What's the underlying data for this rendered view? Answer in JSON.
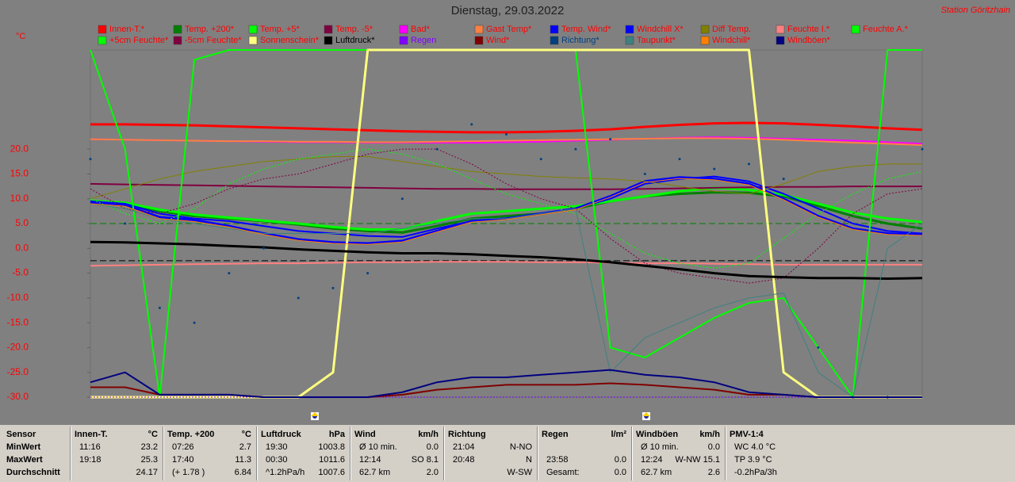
{
  "chart_data": {
    "type": "line",
    "title": "Dienstag, 29.03.2022",
    "station": "Station Göritzhain",
    "y_label": "°C",
    "legend_text_color": "#ff0000",
    "tick_label_color": "#ff0000",
    "x": [
      0,
      1,
      2,
      3,
      4,
      5,
      6,
      7,
      8,
      9,
      10,
      11,
      12,
      13,
      14,
      15,
      16,
      17,
      18,
      19,
      20,
      21,
      22,
      23,
      24
    ],
    "xlim": [
      0,
      24
    ],
    "ylim": [
      -30,
      40
    ],
    "yticks": [
      {
        "value": -30,
        "label": "-30.0"
      },
      {
        "value": -25,
        "label": "-25.0"
      },
      {
        "value": -20,
        "label": "-20.0"
      },
      {
        "value": -15,
        "label": "-15.0"
      },
      {
        "value": -10,
        "label": "-10.0"
      },
      {
        "value": -5,
        "label": "-5.0"
      },
      {
        "value": 0,
        "label": "0.0"
      },
      {
        "value": 5,
        "label": "5.0"
      },
      {
        "value": 10,
        "label": "10.0"
      },
      {
        "value": 15,
        "label": "15.0"
      },
      {
        "value": 20,
        "label": "20.0"
      }
    ],
    "reference_lines": [
      {
        "value": 5,
        "color": "#008000"
      },
      {
        "value": -2.5,
        "color": "#000000"
      }
    ],
    "series": [
      {
        "name": "Innen-T.*",
        "color": "#ff0000",
        "width": 3,
        "values": [
          25.0,
          25.0,
          24.9,
          24.8,
          24.6,
          24.4,
          24.2,
          24.0,
          23.8,
          23.6,
          23.5,
          23.4,
          23.4,
          23.5,
          23.7,
          24.0,
          24.5,
          24.9,
          25.2,
          25.3,
          25.2,
          24.9,
          24.6,
          24.2,
          23.9
        ]
      },
      {
        "name": "Temp. +200*",
        "color": "#008000",
        "width": 3,
        "values": [
          9.3,
          9.0,
          7.5,
          6.5,
          6.0,
          5.5,
          4.8,
          4.0,
          3.5,
          3.2,
          4.5,
          6.0,
          6.5,
          7.0,
          8.0,
          9.5,
          10.5,
          11.0,
          11.3,
          11.2,
          10.5,
          8.5,
          6.5,
          5.0,
          4.0
        ]
      },
      {
        "name": "Temp. +5*",
        "color": "#00ff00",
        "width": 3,
        "values": [
          9.6,
          9.2,
          7.8,
          6.8,
          6.2,
          5.6,
          5.0,
          4.3,
          3.8,
          3.8,
          5.5,
          7.0,
          7.5,
          8.0,
          8.5,
          9.5,
          10.5,
          11.5,
          12.2,
          11.8,
          10.8,
          9.0,
          7.2,
          6.0,
          5.3
        ]
      },
      {
        "name": "Temp. -5*",
        "color": "#800040",
        "width": 2,
        "values": [
          13.0,
          12.9,
          12.8,
          12.7,
          12.6,
          12.5,
          12.4,
          12.3,
          12.2,
          12.1,
          12.0,
          12.0,
          11.9,
          11.9,
          11.9,
          11.9,
          12.0,
          12.1,
          12.2,
          12.3,
          12.4,
          12.4,
          12.5,
          12.5,
          12.5
        ]
      },
      {
        "name": "Bad*",
        "color": "#ff00ff",
        "width": 2,
        "values": [
          22.0,
          21.9,
          21.8,
          21.7,
          21.6,
          21.5,
          21.4,
          21.4,
          21.3,
          21.3,
          21.3,
          21.3,
          21.4,
          21.5,
          21.7,
          21.9,
          22.1,
          22.3,
          22.4,
          22.3,
          22.1,
          21.9,
          21.7,
          21.4,
          21.1
        ]
      },
      {
        "name": "Gast Temp*",
        "color": "#ff8040",
        "width": 2,
        "values": [
          22.0,
          21.9,
          21.8,
          21.7,
          21.6,
          21.6,
          21.5,
          21.5,
          21.4,
          21.4,
          21.5,
          21.6,
          21.7,
          21.8,
          21.9,
          22.0,
          22.1,
          22.2,
          22.2,
          22.1,
          21.9,
          21.6,
          21.3,
          21.1,
          20.8
        ]
      },
      {
        "name": "Temp. Wind*",
        "color": "#0000ff",
        "width": 2,
        "values": [
          9.5,
          9.0,
          7.0,
          6.0,
          5.5,
          4.5,
          3.5,
          3.0,
          2.5,
          2.3,
          4.0,
          5.5,
          6.0,
          7.0,
          8.0,
          10.0,
          13.0,
          14.0,
          14.5,
          13.5,
          11.0,
          8.0,
          5.0,
          3.5,
          3.0
        ]
      },
      {
        "name": "Windchill X*",
        "color": "#0000ff",
        "width": 3,
        "values": [
          9.2,
          8.7,
          6.3,
          5.7,
          4.5,
          3.0,
          1.8,
          1.2,
          1.0,
          1.5,
          3.5,
          5.5,
          6.0,
          7.0,
          8.0,
          10.5,
          13.5,
          14.3,
          14.0,
          13.0,
          10.0,
          6.5,
          4.0,
          3.0,
          2.8
        ]
      },
      {
        "name": "Diff Temp.",
        "color": "#808000",
        "width": 1,
        "values": [
          10.0,
          12.0,
          14.0,
          15.5,
          16.5,
          17.5,
          18.0,
          18.5,
          18.5,
          17.5,
          16.5,
          15.5,
          15.0,
          14.5,
          14.2,
          14.0,
          13.5,
          12.5,
          11.5,
          11.0,
          13.0,
          15.5,
          16.5,
          17.0,
          17.0
        ]
      },
      {
        "name": "Feuchte I.*",
        "color": "#ff8080",
        "width": 2,
        "values": [
          -3.5,
          -3.4,
          -3.3,
          -3.2,
          -3.1,
          -3.0,
          -3.0,
          -2.9,
          -2.8,
          -2.8,
          -2.7,
          -2.7,
          -2.7,
          -2.8,
          -2.8,
          -2.9,
          -3.0,
          -3.0,
          -3.1,
          -3.2,
          -3.3,
          -3.3,
          -3.3,
          -3.3,
          -3.3
        ]
      },
      {
        "name": "Feuchte A.*",
        "color": "#00ff00",
        "width": 2,
        "values": [
          40,
          20,
          -30,
          38,
          40,
          40,
          40,
          40,
          40,
          40,
          40,
          40,
          40,
          40,
          40,
          -20,
          -22,
          -18,
          -14,
          -11,
          -10,
          -20,
          -30,
          40,
          40
        ]
      },
      {
        "name": "+5cm Feuchte*",
        "color": "#00ff00",
        "width": 1,
        "style": "dotted",
        "values": [
          10,
          7,
          5,
          8,
          13,
          16,
          18,
          19,
          20,
          19,
          17,
          14,
          11,
          9,
          7,
          3,
          -1,
          -3,
          -4,
          -3,
          2,
          7,
          11,
          14,
          15.5
        ]
      },
      {
        "name": "-5cm Feuchte*",
        "color": "#800040",
        "width": 1,
        "style": "dotted",
        "values": [
          12,
          8,
          7,
          9,
          12,
          14,
          15,
          17,
          19,
          20,
          20,
          17,
          13,
          10,
          8,
          2,
          -3,
          -5,
          -6,
          -7,
          -6,
          0,
          7,
          11,
          12
        ]
      },
      {
        "name": "Sonnenschein*",
        "color": "#ffff80",
        "width": 3,
        "values": [
          -30,
          -30,
          -30,
          -30,
          -30,
          -30,
          -30,
          -25,
          40,
          40,
          40,
          40,
          40,
          40,
          40,
          40,
          40,
          40,
          40,
          40,
          -25,
          -30,
          -30,
          -30,
          -30
        ]
      },
      {
        "name": "Luftdruck*",
        "color": "#000000",
        "label_color": "#000000",
        "width": 3,
        "values": [
          1.3,
          1.2,
          1.0,
          0.8,
          0.5,
          0.2,
          -0.2,
          -0.5,
          -0.8,
          -1.0,
          -1.0,
          -1.2,
          -1.5,
          -1.8,
          -2.2,
          -2.8,
          -3.5,
          -4.2,
          -5.0,
          -5.6,
          -5.8,
          -6.0,
          -6.0,
          -6.1,
          -6.0
        ]
      },
      {
        "name": "Regen",
        "color": "#8000ff",
        "label_color": "#8000ff",
        "width": 1,
        "style": "dotted",
        "values": [
          -30,
          -30,
          -30,
          -30,
          -30,
          -30,
          -30,
          -30,
          -30,
          -30,
          -30,
          -30,
          -30,
          -30,
          -30,
          -30,
          -30,
          -30,
          -30,
          -30,
          -30,
          -30,
          -30,
          -30,
          -30
        ]
      },
      {
        "name": "Wind*",
        "color": "#800000",
        "width": 2,
        "values": [
          -28,
          -28,
          -29.5,
          -29.5,
          -29.5,
          -30,
          -30,
          -30,
          -30,
          -29.5,
          -28.5,
          -28,
          -27.5,
          -27.5,
          -27.5,
          -27.2,
          -27.5,
          -28,
          -28.5,
          -29.5,
          -29.5,
          -30,
          -30,
          -30,
          -30
        ]
      },
      {
        "name": "Richtung*",
        "color": "#004080",
        "label_color": "#004080",
        "style": "dots",
        "values": [
          18,
          5,
          -12,
          -15,
          -5,
          0,
          -10,
          -8,
          -5,
          10,
          20,
          25,
          23,
          18,
          20,
          22,
          15,
          18,
          16,
          17,
          14,
          -20,
          -30,
          -30,
          20
        ]
      },
      {
        "name": "Taupunkt*",
        "color": "#408080",
        "width": 1,
        "values": [
          9,
          8,
          6,
          5,
          4,
          3,
          3,
          3,
          3,
          4,
          5,
          6,
          6,
          7,
          8,
          -25,
          -18,
          -15,
          -12,
          -10,
          -9,
          -25,
          -30,
          0,
          5
        ]
      },
      {
        "name": "Windchill*",
        "color": "#ff8000",
        "width": 1,
        "values": [
          9.0,
          8.5,
          6.0,
          5.4,
          4.3,
          2.8,
          1.6,
          1.0,
          0.8,
          1.3,
          3.3,
          5.3,
          5.8,
          6.8,
          7.8,
          10.3,
          13.3,
          14.1,
          13.8,
          12.8,
          9.8,
          6.3,
          3.8,
          2.8,
          2.6
        ]
      },
      {
        "name": "Windböen*",
        "color": "#000080",
        "width": 2,
        "values": [
          -27,
          -25,
          -29.5,
          -29.5,
          -29.5,
          -30,
          -30,
          -30,
          -30,
          -29,
          -27,
          -26,
          -26,
          -25.5,
          -25,
          -24.5,
          -25.5,
          -26,
          -27,
          -29,
          -29.5,
          -30,
          -30,
          -30,
          -30
        ]
      }
    ]
  },
  "table": {
    "header": "Sensor",
    "row_labels": [
      "MinWert",
      "MaxWert",
      "Durchschnitt"
    ],
    "columns": [
      {
        "name": "Innen-T.",
        "unit": "°C",
        "rows": [
          [
            "11:16",
            "23.2"
          ],
          [
            "19:18",
            "25.3"
          ],
          [
            null,
            "24.17"
          ]
        ]
      },
      {
        "name": "Temp. +200",
        "unit": "°C",
        "rows": [
          [
            "07:26",
            "2.7"
          ],
          [
            "17:40",
            "11.3"
          ],
          [
            "(+ 1.78 )",
            "6.84"
          ]
        ]
      },
      {
        "name": "Luftdruck",
        "unit": "hPa",
        "rows": [
          [
            "19:30",
            "1003.8"
          ],
          [
            "00:30",
            "1011.6"
          ],
          [
            "^1.2hPa/h",
            "1007.6"
          ]
        ]
      },
      {
        "name": "Wind",
        "unit": "km/h",
        "rows": [
          [
            "Ø 10 min.",
            "0.0"
          ],
          [
            "12:14",
            "SO 8.1"
          ],
          [
            "62.7 km",
            "2.0"
          ]
        ]
      },
      {
        "name": "Richtung",
        "rows": [
          [
            "21:04",
            "N-NO"
          ],
          [
            "20:48",
            "N"
          ],
          [
            null,
            "W-SW"
          ]
        ]
      },
      {
        "name": "Regen",
        "unit": "l/m²",
        "rows": [
          [
            null,
            null
          ],
          [
            "23:58",
            "0.0"
          ],
          [
            "Gesamt:",
            "0.0"
          ]
        ]
      },
      {
        "name": "Windböen",
        "unit": "km/h",
        "rows": [
          [
            "Ø 10 min.",
            "0.0"
          ],
          [
            "12:24",
            "W-NW 15.1"
          ],
          [
            "62.7 km",
            "2.6"
          ]
        ]
      },
      {
        "name": "PMV-1:4",
        "rows": [
          [
            "WC 4.0 °C",
            null
          ],
          [
            "TP 3.9 °C",
            null
          ],
          [
            "-0.2hPa/3h",
            null
          ]
        ]
      }
    ]
  }
}
